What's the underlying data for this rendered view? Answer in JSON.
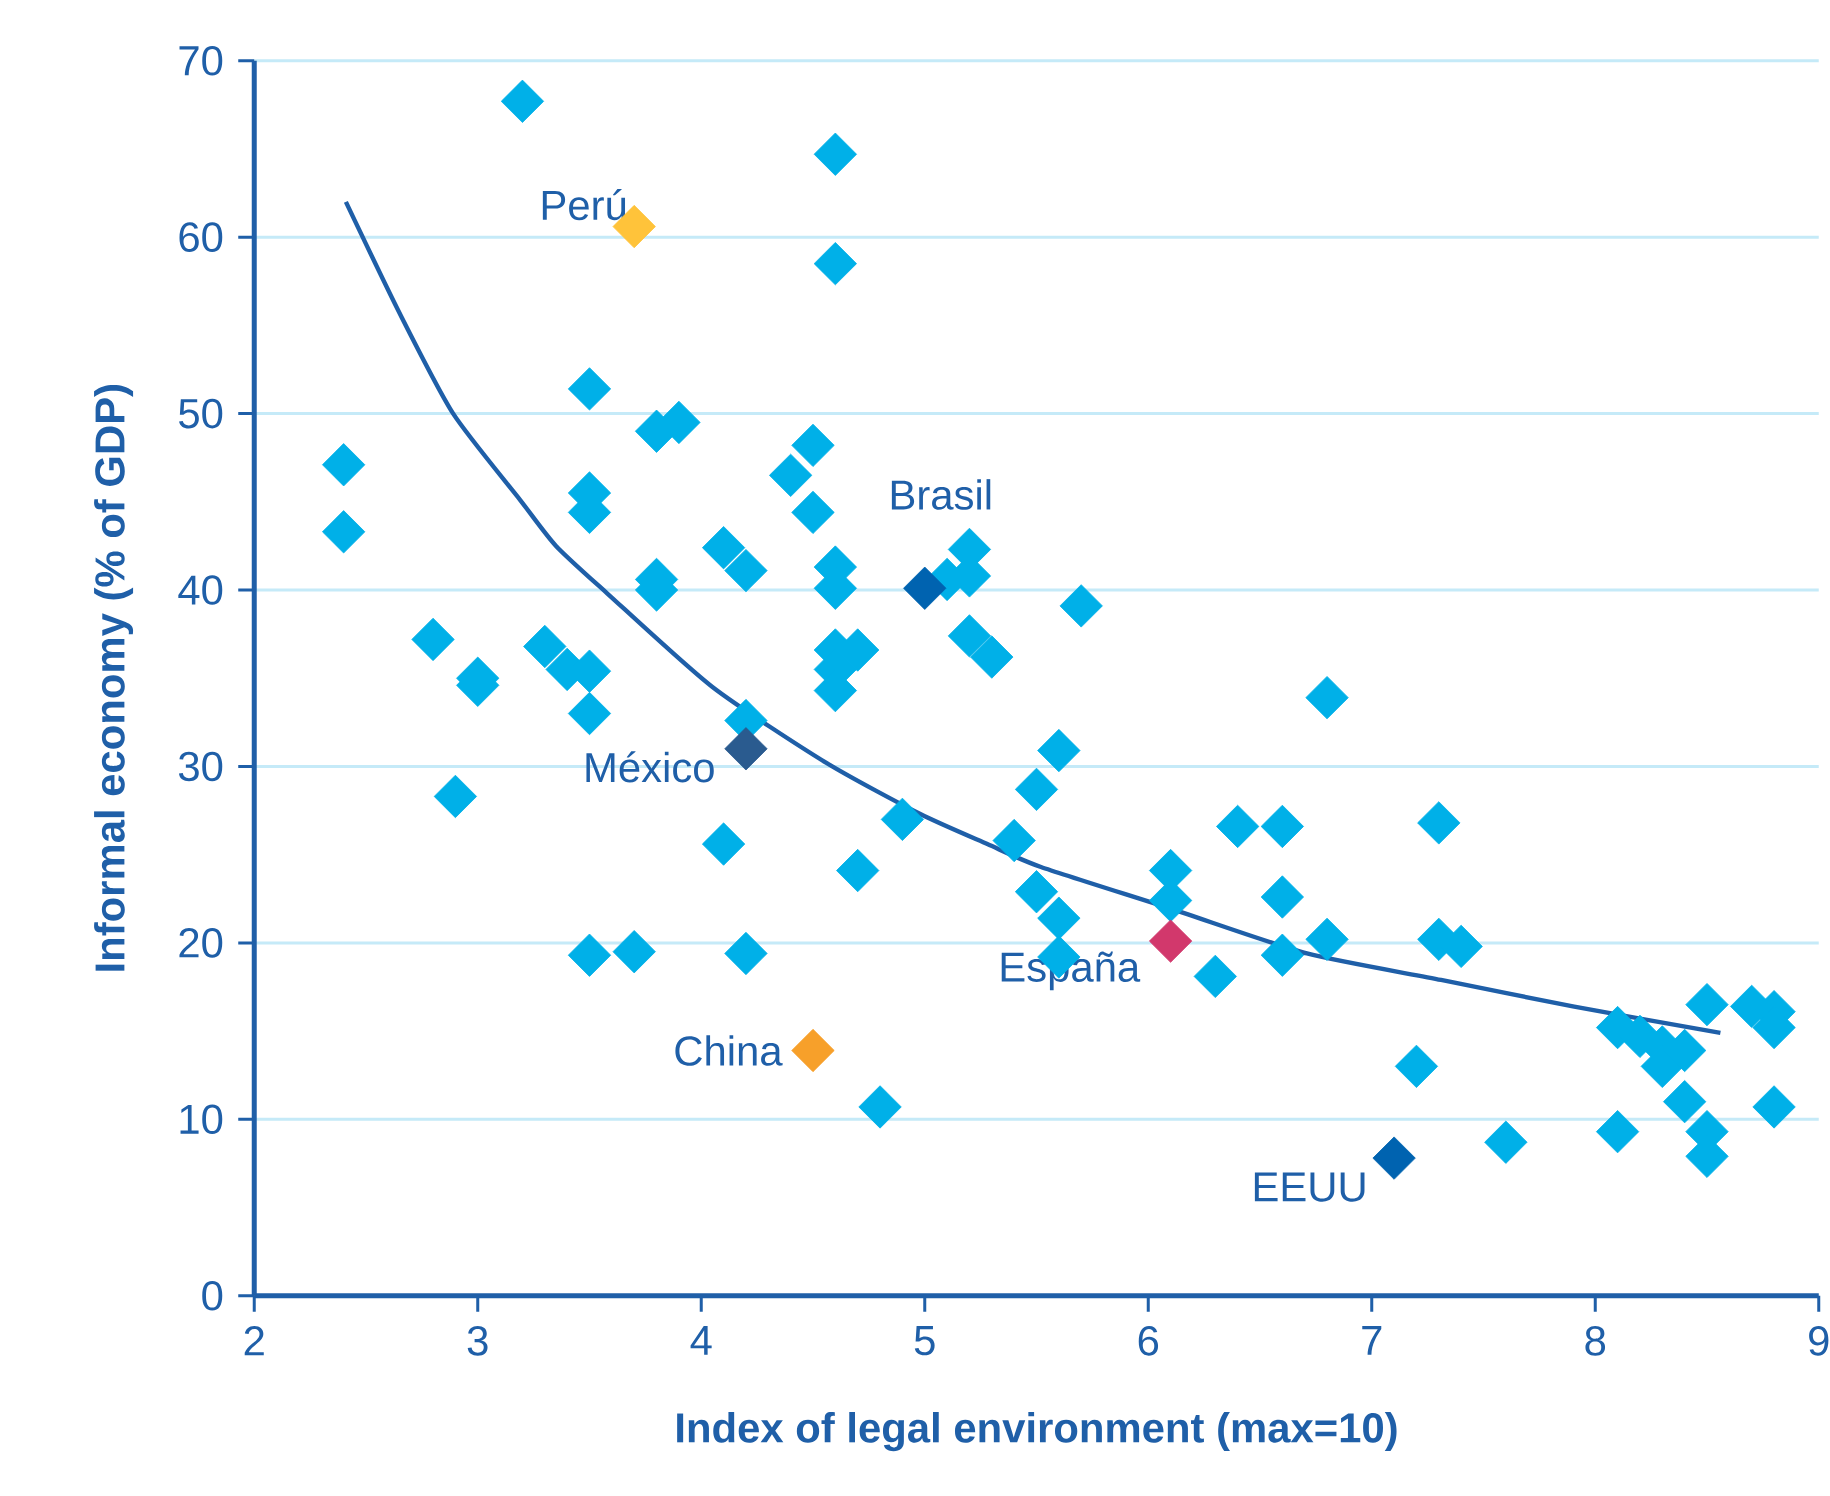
{
  "chart_data": {
    "type": "scatter",
    "xlabel": "Index of legal environment (max=10)",
    "ylabel": "Informal economy (% of GDP)",
    "xlim": [
      2,
      9
    ],
    "xticks": [
      2,
      3,
      4,
      5,
      6,
      7,
      8,
      9
    ],
    "ylim": [
      0,
      70
    ],
    "yticks": [
      0,
      10,
      20,
      30,
      40,
      50,
      60,
      70
    ],
    "grid": "y",
    "marker": "diamond",
    "series": [
      {
        "color": "#00b0e8",
        "x": [
          3.2,
          4.6,
          4.6,
          3.5,
          3.8,
          3.9,
          2.4,
          2.4,
          3.5,
          3.5,
          4.5,
          4.4,
          4.5,
          4.1,
          4.2,
          3.8,
          3.8,
          4.6,
          4.6,
          5.2,
          5.2,
          5.1,
          5.2,
          5.3,
          5.7,
          2.8,
          3.0,
          3.0,
          3.3,
          3.4,
          3.5,
          3.5,
          2.9,
          4.1,
          4.2,
          4.6,
          4.7,
          4.6,
          4.6,
          4.7,
          4.9,
          3.5,
          3.7,
          4.2,
          4.8,
          5.4,
          6.8,
          5.6,
          5.5,
          5.5,
          5.6,
          5.6,
          6.1,
          6.1,
          6.3,
          6.4,
          6.6,
          6.6,
          6.6,
          6.8,
          7.3,
          7.3,
          7.4,
          7.2,
          7.6,
          8.1,
          8.1,
          8.2,
          8.3,
          8.3,
          8.4,
          8.4,
          8.5,
          8.5,
          8.5,
          8.7,
          8.8,
          8.8,
          8.8
        ],
        "values": [
          67.7,
          64.7,
          58.5,
          51.4,
          49.0,
          49.5,
          47.1,
          43.3,
          45.5,
          44.4,
          48.2,
          46.5,
          44.4,
          42.4,
          41.1,
          40.6,
          40.0,
          41.3,
          40.1,
          42.3,
          40.8,
          40.6,
          37.4,
          36.2,
          39.1,
          37.2,
          35.0,
          34.6,
          36.8,
          35.5,
          35.4,
          33.0,
          28.3,
          25.6,
          32.6,
          36.6,
          36.6,
          35.5,
          34.3,
          24.1,
          27.0,
          19.3,
          19.5,
          19.4,
          10.7,
          25.8,
          33.9,
          30.9,
          28.7,
          22.9,
          21.4,
          19.2,
          24.1,
          22.4,
          18.1,
          26.6,
          26.6,
          22.6,
          19.3,
          20.2,
          26.8,
          20.2,
          19.8,
          13.0,
          8.7,
          9.3,
          15.2,
          14.7,
          14.1,
          13.0,
          13.9,
          11.0,
          16.5,
          9.3,
          7.9,
          16.4,
          16.1,
          15.2,
          10.7
        ]
      },
      {
        "name": "Perú",
        "color": "#ffc33a",
        "x": [
          3.7
        ],
        "values": [
          60.6
        ]
      },
      {
        "name": "Brasil",
        "color": "#0063b0",
        "x": [
          5.0
        ],
        "values": [
          40.1
        ]
      },
      {
        "name": "México",
        "color": "#2a5b8f",
        "x": [
          4.2
        ],
        "values": [
          31.0
        ]
      },
      {
        "name": "China",
        "color": "#f7a02a",
        "x": [
          4.5
        ],
        "values": [
          13.9
        ]
      },
      {
        "name": "España",
        "color": "#d2386c",
        "x": [
          6.1
        ],
        "values": [
          20.1
        ]
      },
      {
        "name": "EEUU",
        "color": "#0063b0",
        "x": [
          7.1
        ],
        "values": [
          7.8
        ]
      },
      {
        "type": "line",
        "color": "#1f5fa8",
        "marker": "none",
        "line_style": "solid",
        "x": [
          2.41,
          2.65,
          2.89,
          3.19,
          3.35,
          3.58,
          4.05,
          4.56,
          4.98,
          5.28,
          5.52,
          6.11,
          6.71,
          7.31,
          7.9,
          8.56
        ],
        "values": [
          62.0,
          55.7,
          50.0,
          45.1,
          42.5,
          39.8,
          34.5,
          30.2,
          27.3,
          25.6,
          24.3,
          21.9,
          19.4,
          17.9,
          16.4,
          14.9
        ]
      }
    ]
  }
}
